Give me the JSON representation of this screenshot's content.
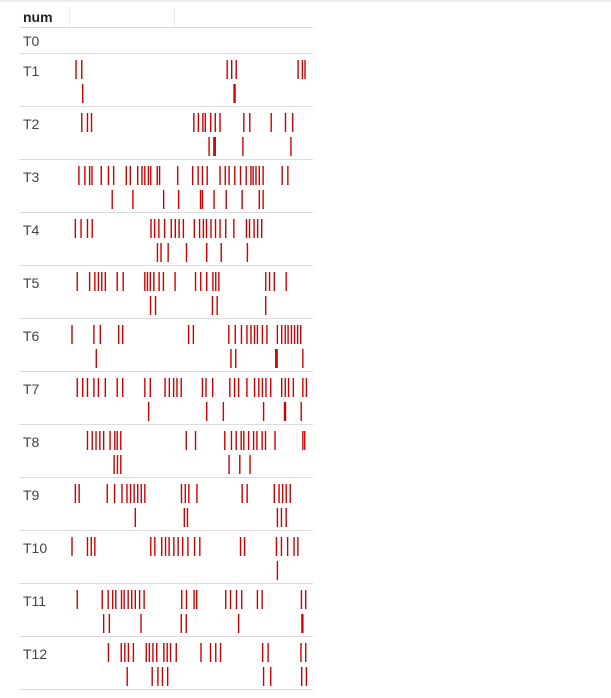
{
  "header": {
    "column": "num"
  },
  "mark_color": "#cc0000",
  "rows": [
    {
      "name": "T0",
      "line1": [],
      "line2": []
    },
    {
      "name": "T1",
      "line1": [
        0.017,
        0.041,
        0.652,
        0.671,
        0.69,
        0.95,
        0.968,
        0.979
      ],
      "line2": [
        0.045,
        0.681,
        0.685
      ]
    },
    {
      "name": "T2",
      "line1": [
        0.041,
        0.065,
        0.082,
        0.512,
        0.531,
        0.55,
        0.56,
        0.583,
        0.602,
        0.622,
        0.722,
        0.747,
        0.837,
        0.897,
        0.927
      ],
      "line2": [
        0.576,
        0.596,
        0.602,
        0.718,
        0.92
      ]
    },
    {
      "name": "T3",
      "line1": [
        0.029,
        0.054,
        0.074,
        0.084,
        0.123,
        0.153,
        0.175,
        0.228,
        0.245,
        0.276,
        0.294,
        0.306,
        0.321,
        0.331,
        0.358,
        0.368,
        0.444,
        0.507,
        0.53,
        0.548,
        0.568,
        0.622,
        0.644,
        0.66,
        0.684,
        0.708,
        0.732,
        0.752,
        0.761,
        0.773,
        0.787,
        0.803,
        0.883,
        0.907
      ],
      "line2": [
        0.169,
        0.256,
        0.385,
        0.448,
        0.54,
        0.548,
        0.597,
        0.648,
        0.715,
        0.787,
        0.803
      ]
    },
    {
      "name": "T4",
      "line1": [
        0.014,
        0.038,
        0.065,
        0.085,
        0.332,
        0.347,
        0.365,
        0.389,
        0.417,
        0.434,
        0.45,
        0.468,
        0.514,
        0.536,
        0.552,
        0.565,
        0.584,
        0.603,
        0.622,
        0.646,
        0.68,
        0.733,
        0.746,
        0.765,
        0.78,
        0.797
      ],
      "line2": [
        0.359,
        0.374,
        0.404,
        0.481,
        0.566,
        0.627,
        0.737
      ]
    },
    {
      "name": "T5",
      "line1": [
        0.022,
        0.074,
        0.096,
        0.111,
        0.125,
        0.14,
        0.19,
        0.215,
        0.306,
        0.317,
        0.329,
        0.344,
        0.366,
        0.384,
        0.433,
        0.519,
        0.541,
        0.566,
        0.592,
        0.604,
        0.617,
        0.814,
        0.83,
        0.85,
        0.9
      ],
      "line2": [
        0.33,
        0.351,
        0.59,
        0.61,
        0.814
      ]
    },
    {
      "name": "T6",
      "line1": [
        0.0,
        0.092,
        0.119,
        0.196,
        0.213,
        0.49,
        0.51,
        0.659,
        0.686,
        0.712,
        0.735,
        0.752,
        0.767,
        0.779,
        0.8,
        0.819,
        0.863,
        0.881,
        0.896,
        0.908,
        0.922,
        0.935,
        0.948,
        0.961
      ],
      "line2": [
        0.102,
        0.668,
        0.688,
        0.856,
        0.862,
        0.97
      ]
    },
    {
      "name": "T7",
      "line1": [
        0.022,
        0.045,
        0.065,
        0.092,
        0.111,
        0.14,
        0.19,
        0.213,
        0.306,
        0.329,
        0.391,
        0.409,
        0.427,
        0.441,
        0.459,
        0.548,
        0.563,
        0.591,
        0.663,
        0.683,
        0.7,
        0.735,
        0.767,
        0.785,
        0.8,
        0.815,
        0.835,
        0.881,
        0.896,
        0.91,
        0.93,
        0.97,
        0.985
      ],
      "line2": [
        0.322,
        0.566,
        0.636,
        0.805,
        0.893,
        0.897,
        0.963
      ]
    },
    {
      "name": "T8",
      "line1": [
        0.065,
        0.085,
        0.101,
        0.117,
        0.133,
        0.16,
        0.18,
        0.19,
        0.205,
        0.48,
        0.519,
        0.642,
        0.67,
        0.69,
        0.711,
        0.722,
        0.742,
        0.763,
        0.777,
        0.799,
        0.813,
        0.853,
        0.97,
        0.978
      ],
      "line2": [
        0.177,
        0.191,
        0.205,
        0.66,
        0.705,
        0.748
      ]
    },
    {
      "name": "T9",
      "line1": [
        0.014,
        0.03,
        0.148,
        0.179,
        0.21,
        0.231,
        0.246,
        0.261,
        0.276,
        0.291,
        0.306,
        0.46,
        0.476,
        0.491,
        0.525,
        0.715,
        0.736,
        0.85,
        0.87,
        0.885,
        0.9,
        0.917
      ],
      "line2": [
        0.266,
        0.472,
        0.485,
        0.863,
        0.88,
        0.9
      ]
    },
    {
      "name": "T10",
      "line1": [
        0.0,
        0.065,
        0.081,
        0.096,
        0.331,
        0.348,
        0.377,
        0.393,
        0.408,
        0.428,
        0.446,
        0.465,
        0.487,
        0.515,
        0.537,
        0.708,
        0.725,
        0.859,
        0.88,
        0.906,
        0.933,
        0.949
      ],
      "line2": [
        0.863
      ]
    },
    {
      "name": "T11",
      "line1": [
        0.022,
        0.127,
        0.152,
        0.171,
        0.184,
        0.208,
        0.219,
        0.236,
        0.251,
        0.266,
        0.284,
        0.303,
        0.461,
        0.481,
        0.513,
        0.524,
        0.646,
        0.666,
        0.691,
        0.713,
        0.779,
        0.799,
        0.964,
        0.982
      ],
      "line2": [
        0.133,
        0.157,
        0.29,
        0.459,
        0.48,
        0.7,
        0.966,
        0.97
      ]
    },
    {
      "name": "T12",
      "line1": [
        0.153,
        0.207,
        0.222,
        0.237,
        0.258,
        0.312,
        0.325,
        0.34,
        0.356,
        0.386,
        0.4,
        0.414,
        0.438,
        0.542,
        0.582,
        0.604,
        0.624,
        0.801,
        0.824,
        0.962,
        0.982
      ],
      "line2": [
        0.232,
        0.337,
        0.361,
        0.38,
        0.402,
        0.805,
        0.835,
        0.965,
        0.985
      ]
    }
  ]
}
